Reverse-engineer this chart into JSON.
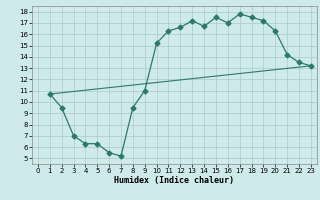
{
  "xlabel": "Humidex (Indice chaleur)",
  "line1_x": [
    1,
    2,
    3,
    4,
    5,
    6,
    7,
    8,
    9,
    10,
    11,
    12,
    13,
    14,
    15,
    16,
    17,
    18,
    19,
    20,
    21,
    22,
    23
  ],
  "line1_y": [
    10.7,
    9.5,
    7.0,
    6.3,
    6.3,
    5.5,
    5.2,
    9.5,
    11.0,
    15.2,
    16.3,
    16.6,
    17.2,
    16.7,
    17.5,
    17.0,
    17.8,
    17.5,
    17.2,
    16.3,
    14.2,
    13.5,
    13.2
  ],
  "line2_x": [
    1,
    23
  ],
  "line2_y": [
    10.7,
    13.2
  ],
  "line_color": "#2a7a6a",
  "bg_color": "#ceeaea",
  "grid_color": "#aacaca",
  "xlim": [
    -0.5,
    23.5
  ],
  "ylim": [
    4.5,
    18.5
  ],
  "yticks": [
    5,
    6,
    7,
    8,
    9,
    10,
    11,
    12,
    13,
    14,
    15,
    16,
    17,
    18
  ],
  "xticks": [
    0,
    1,
    2,
    3,
    4,
    5,
    6,
    7,
    8,
    9,
    10,
    11,
    12,
    13,
    14,
    15,
    16,
    17,
    18,
    19,
    20,
    21,
    22,
    23
  ]
}
